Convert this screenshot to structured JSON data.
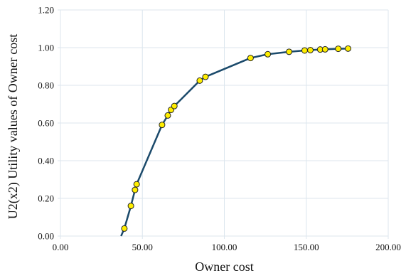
{
  "chart_data": {
    "type": "line",
    "title": "",
    "xlabel": "Owner cost",
    "ylabel": "U2(x2) Utility values of Owner cost",
    "xlim": [
      0,
      200
    ],
    "ylim": [
      0,
      1.2
    ],
    "x_ticks": [
      "0.00",
      "50.00",
      "100.00",
      "150.00",
      "200.00"
    ],
    "y_ticks": [
      "0.00",
      "0.20",
      "0.40",
      "0.60",
      "0.80",
      "1.00",
      "1.20"
    ],
    "grid": true,
    "legend": "none",
    "line_color": "#1b4a6b",
    "marker_fill": "#ffee00",
    "marker_stroke": "#222222",
    "grid_color": "#dce6ee",
    "curve": [
      {
        "x": 37.0,
        "y": 0.0
      },
      {
        "x": 39.0,
        "y": 0.04
      },
      {
        "x": 43.0,
        "y": 0.16
      },
      {
        "x": 45.5,
        "y": 0.245
      },
      {
        "x": 46.5,
        "y": 0.275
      },
      {
        "x": 62.0,
        "y": 0.59
      },
      {
        "x": 65.5,
        "y": 0.64
      },
      {
        "x": 67.5,
        "y": 0.67
      },
      {
        "x": 69.5,
        "y": 0.69
      },
      {
        "x": 85.0,
        "y": 0.825
      },
      {
        "x": 88.5,
        "y": 0.845
      },
      {
        "x": 116.0,
        "y": 0.945
      },
      {
        "x": 126.5,
        "y": 0.965
      },
      {
        "x": 139.5,
        "y": 0.978
      },
      {
        "x": 149.0,
        "y": 0.985
      },
      {
        "x": 152.5,
        "y": 0.987
      },
      {
        "x": 158.5,
        "y": 0.99
      },
      {
        "x": 161.5,
        "y": 0.991
      },
      {
        "x": 169.5,
        "y": 0.994
      },
      {
        "x": 175.5,
        "y": 0.995
      }
    ],
    "points": [
      {
        "x": 39.0,
        "y": 0.04
      },
      {
        "x": 43.0,
        "y": 0.16
      },
      {
        "x": 45.5,
        "y": 0.245
      },
      {
        "x": 46.5,
        "y": 0.275
      },
      {
        "x": 62.0,
        "y": 0.59
      },
      {
        "x": 65.5,
        "y": 0.64
      },
      {
        "x": 67.5,
        "y": 0.67
      },
      {
        "x": 69.5,
        "y": 0.69
      },
      {
        "x": 85.0,
        "y": 0.825
      },
      {
        "x": 88.5,
        "y": 0.845
      },
      {
        "x": 116.0,
        "y": 0.945
      },
      {
        "x": 126.5,
        "y": 0.965
      },
      {
        "x": 139.5,
        "y": 0.978
      },
      {
        "x": 149.0,
        "y": 0.985
      },
      {
        "x": 152.5,
        "y": 0.987
      },
      {
        "x": 158.5,
        "y": 0.99
      },
      {
        "x": 161.5,
        "y": 0.991
      },
      {
        "x": 169.5,
        "y": 0.994
      },
      {
        "x": 175.5,
        "y": 0.995
      }
    ]
  }
}
